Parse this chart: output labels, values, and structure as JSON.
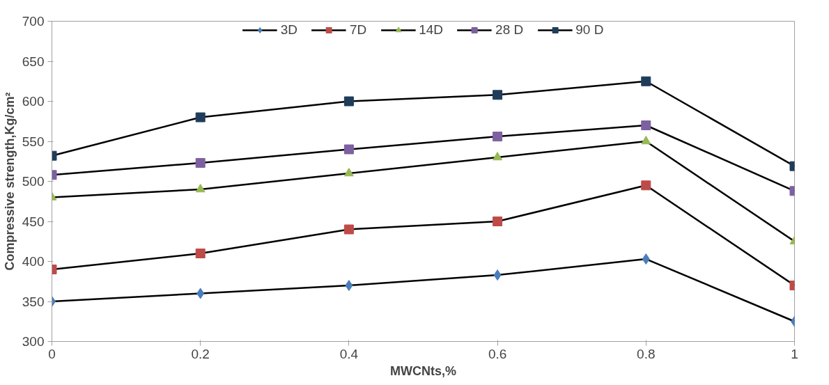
{
  "chart_data": {
    "type": "line",
    "xlabel": "MWCNts,%",
    "ylabel": "Compressive strength,Kg/cm²",
    "x": [
      0,
      0.2,
      0.4,
      0.6,
      0.8,
      1
    ],
    "xlim": [
      0,
      1
    ],
    "xticks": [
      0,
      {
        "value": 0.2,
        "label": "0.2"
      },
      {
        "value": 0.4,
        "label": "0.4"
      },
      {
        "value": 0.6,
        "label": "0.6"
      },
      {
        "value": 0.8,
        "label": "0.8"
      },
      1
    ],
    "ylim": [
      300,
      700
    ],
    "yticks": [
      300,
      350,
      400,
      450,
      500,
      550,
      600,
      650,
      700
    ],
    "grid": false,
    "legend": "top",
    "series": [
      {
        "name": "3D",
        "color": "#4a7ebb",
        "marker": "diamond",
        "values": [
          350,
          360,
          370,
          383,
          403,
          325
        ]
      },
      {
        "name": "7D",
        "color": "#be4b48",
        "marker": "square",
        "values": [
          390,
          410,
          440,
          450,
          495,
          370
        ]
      },
      {
        "name": "14D",
        "color": "#98b954",
        "marker": "triangle",
        "values": [
          480,
          490,
          510,
          530,
          550,
          425
        ]
      },
      {
        "name": "28 D",
        "color": "#7d60a0",
        "marker": "square",
        "values": [
          508,
          523,
          540,
          556,
          570,
          488
        ]
      },
      {
        "name": "90 D",
        "color": "#1f3d5a",
        "marker": "square",
        "values": [
          532,
          580,
          600,
          608,
          625,
          519
        ]
      }
    ]
  }
}
